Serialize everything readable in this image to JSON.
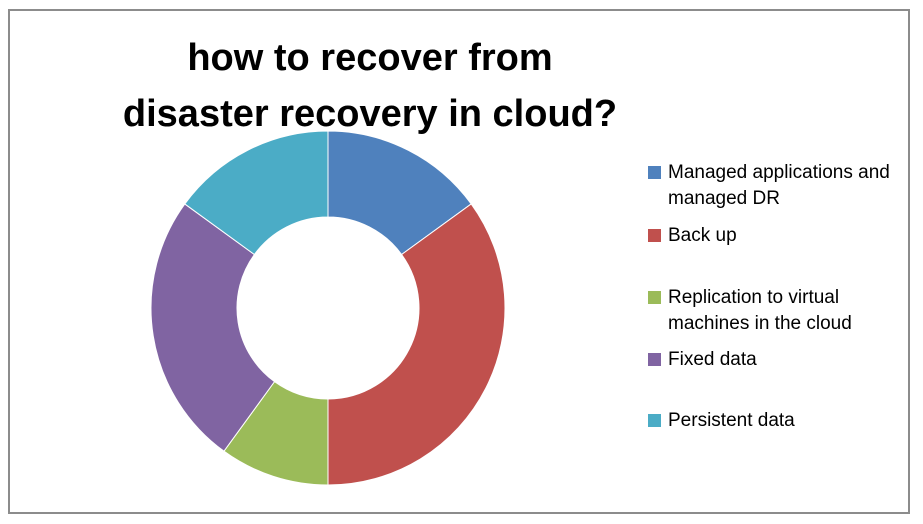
{
  "chart_data": {
    "type": "pie",
    "donut": true,
    "title": "how to recover from disaster recovery in cloud?",
    "legend_position": "right",
    "categories": [
      "Managed applications and managed DR",
      "Back up",
      "Replication to virtual machines in the cloud",
      "Fixed data",
      "Persistent data"
    ],
    "values": [
      15,
      35,
      10,
      25,
      15
    ],
    "colors": [
      "#4f81bd",
      "#c0504d",
      "#9bbb59",
      "#8064a2",
      "#4bacc6"
    ]
  }
}
